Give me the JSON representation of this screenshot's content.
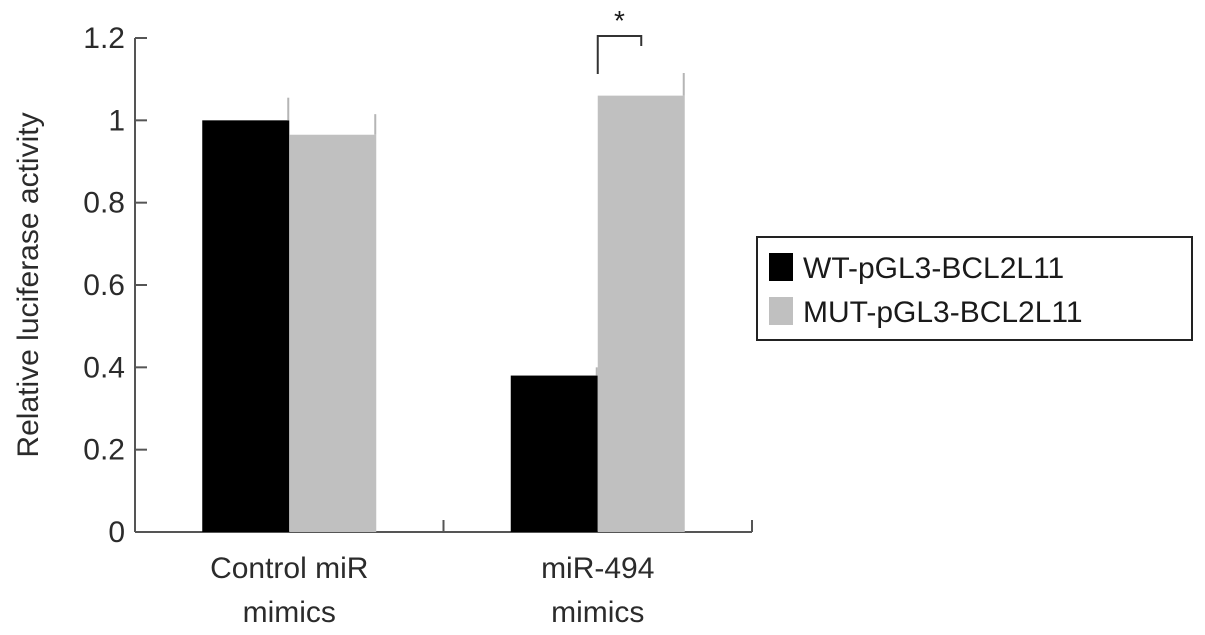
{
  "chart_data": {
    "type": "bar",
    "ylabel": "Relative luciferase activity",
    "xlabel": "",
    "ylim": [
      0,
      1.2
    ],
    "yticks": [
      "0",
      "0.2",
      "0.4",
      "0.6",
      "0.8",
      "1",
      "1.2"
    ],
    "categories": [
      {
        "lines": [
          "Control miR",
          "mimics"
        ]
      },
      {
        "lines": [
          "miR-494",
          "mimics"
        ]
      }
    ],
    "series": [
      {
        "name": "WT-pGL3-BCL2L11",
        "color": "#000000",
        "values": [
          1.0,
          0.38
        ],
        "errors": [
          0.055,
          0.02
        ]
      },
      {
        "name": "MUT-pGL3-BCL2L11",
        "color": "#c0c0c0",
        "values": [
          0.965,
          1.06
        ],
        "errors": [
          0.05,
          0.055
        ]
      }
    ],
    "significance": [
      {
        "category_index": 1,
        "label": "*"
      }
    ],
    "legend_position": "right",
    "grid": false
  }
}
